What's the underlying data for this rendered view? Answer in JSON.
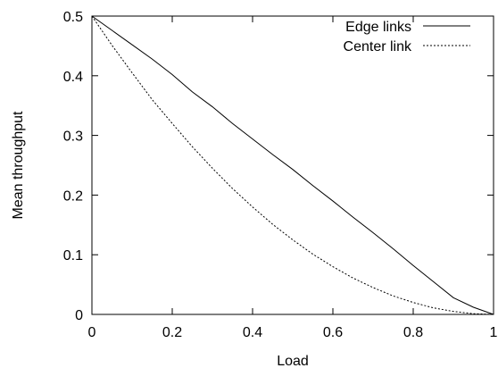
{
  "chart_data": {
    "type": "line",
    "xlabel": "Load",
    "ylabel": "Mean throughput",
    "xlim": [
      0,
      1
    ],
    "ylim": [
      0,
      0.5
    ],
    "x_ticks": [
      "0",
      "0.2",
      "0.4",
      "0.6",
      "0.8",
      "1"
    ],
    "y_ticks": [
      "0",
      "0.1",
      "0.2",
      "0.3",
      "0.4",
      "0.5"
    ],
    "grid": false,
    "legend_position": "top-right",
    "series": [
      {
        "name": "Edge links",
        "style": "solid",
        "x": [
          0,
          0.05,
          0.1,
          0.15,
          0.2,
          0.25,
          0.3,
          0.35,
          0.4,
          0.45,
          0.5,
          0.55,
          0.6,
          0.65,
          0.7,
          0.75,
          0.8,
          0.85,
          0.9,
          0.95,
          1.0
        ],
        "y": [
          0.5,
          0.476,
          0.452,
          0.428,
          0.402,
          0.373,
          0.348,
          0.32,
          0.294,
          0.268,
          0.243,
          0.216,
          0.19,
          0.163,
          0.137,
          0.11,
          0.082,
          0.055,
          0.028,
          0.012,
          0.0
        ]
      },
      {
        "name": "Center link",
        "style": "dashed",
        "x": [
          0,
          0.05,
          0.1,
          0.15,
          0.2,
          0.25,
          0.3,
          0.35,
          0.4,
          0.45,
          0.5,
          0.55,
          0.6,
          0.65,
          0.7,
          0.75,
          0.8,
          0.85,
          0.9,
          0.95,
          1.0
        ],
        "y": [
          0.5,
          0.451,
          0.405,
          0.36,
          0.32,
          0.281,
          0.245,
          0.211,
          0.18,
          0.151,
          0.125,
          0.101,
          0.08,
          0.061,
          0.045,
          0.031,
          0.02,
          0.011,
          0.005,
          0.0012,
          0.0
        ]
      }
    ]
  }
}
